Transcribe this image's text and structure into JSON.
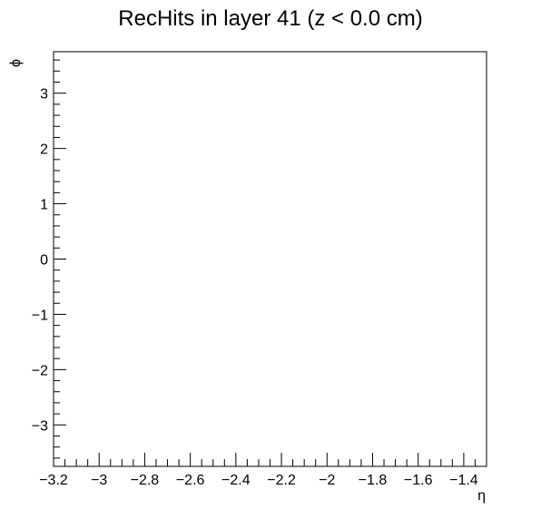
{
  "chart_data": {
    "type": "scatter",
    "title": "RecHits in layer 41 (z < 0.0 cm)",
    "xlabel": "η",
    "ylabel": "ϕ",
    "xlim": [
      -3.2,
      -1.3
    ],
    "ylim": [
      -3.75,
      3.75
    ],
    "x_ticks": [
      {
        "value": -3.2,
        "label": "−3.2"
      },
      {
        "value": -3.0,
        "label": "−3"
      },
      {
        "value": -2.8,
        "label": "−2.8"
      },
      {
        "value": -2.6,
        "label": "−2.6"
      },
      {
        "value": -2.4,
        "label": "−2.4"
      },
      {
        "value": -2.2,
        "label": "−2.2"
      },
      {
        "value": -2.0,
        "label": "−2"
      },
      {
        "value": -1.8,
        "label": "−1.8"
      },
      {
        "value": -1.6,
        "label": "−1.6"
      },
      {
        "value": -1.4,
        "label": "−1.4"
      }
    ],
    "y_ticks": [
      {
        "value": 3,
        "label": "3"
      },
      {
        "value": 2,
        "label": "2"
      },
      {
        "value": 1,
        "label": "1"
      },
      {
        "value": 0,
        "label": "0"
      },
      {
        "value": -1,
        "label": "−1"
      },
      {
        "value": -2,
        "label": "−2"
      },
      {
        "value": -3,
        "label": "−3"
      }
    ],
    "x_minor_step": 0.05,
    "y_minor_step": 0.2,
    "points": [],
    "grid": false,
    "legend": "none"
  }
}
